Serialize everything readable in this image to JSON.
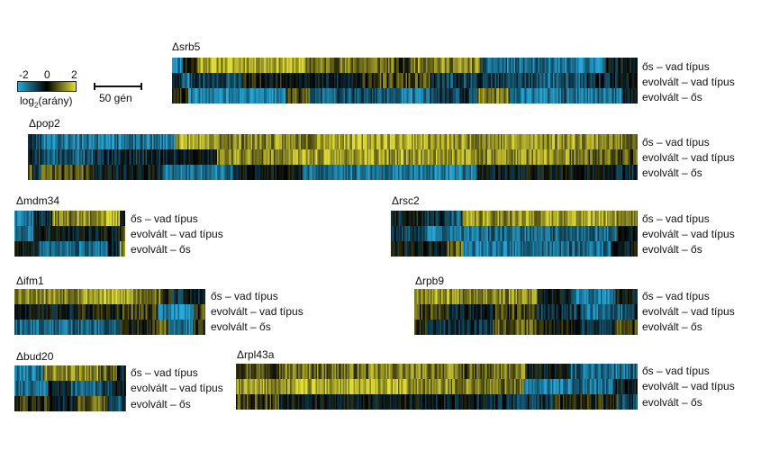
{
  "legend": {
    "tick_min": "-2",
    "tick_mid": "0",
    "tick_max": "2",
    "label_main": "log",
    "label_sub": "2",
    "label_rest": "(arány)",
    "scale_text": "50 gén"
  },
  "colors": {
    "low": "#28a8d8",
    "mid": "#000000",
    "high": "#e2de38"
  },
  "row_labels": [
    "ős – vad típus",
    "evolvált – vad típus",
    "evolvált – ős"
  ],
  "chart_data": {
    "type": "heatmap",
    "value_range": [
      -2,
      2
    ],
    "units": "log2(arány)",
    "panels": [
      {
        "id": "srb5",
        "title": "Δsrb5",
        "rows": [
          {
            "label": "ős – vad típus",
            "segments": [
              [
                6,
                -1.5
              ],
              [
                8,
                0.3
              ],
              [
                60,
                1.6
              ],
              [
                50,
                1.0
              ],
              [
                10,
                0.2
              ],
              [
                40,
                1.2
              ],
              [
                40,
                -1.3
              ],
              [
                30,
                -1.5
              ],
              [
                18,
                -0.2
              ]
            ]
          },
          {
            "label": "evolvált – vad típus",
            "segments": [
              [
                5,
                -0.3
              ],
              [
                5,
                -1.4
              ],
              [
                30,
                -0.8
              ],
              [
                40,
                0.1
              ],
              [
                30,
                -0.4
              ],
              [
                40,
                0.6
              ],
              [
                60,
                -0.8
              ],
              [
                30,
                -1.1
              ],
              [
                20,
                -0.5
              ],
              [
                10,
                -0.2
              ]
            ]
          },
          {
            "label": "evolvált – ős",
            "segments": [
              [
                10,
                0.2
              ],
              [
                60,
                -1.6
              ],
              [
                15,
                0.7
              ],
              [
                55,
                -1.0
              ],
              [
                20,
                -1.4
              ],
              [
                30,
                -0.7
              ],
              [
                20,
                1.0
              ],
              [
                30,
                -1.5
              ],
              [
                40,
                -1.3
              ],
              [
                10,
                -0.3
              ]
            ]
          }
        ]
      },
      {
        "id": "pop2",
        "title": "Δpop2",
        "rows": [
          {
            "label": "ős – vad típus",
            "segments": [
              [
                3,
                -0.3
              ],
              [
                8,
                -0.9
              ],
              [
                45,
                -1.4
              ],
              [
                60,
                -1.4
              ],
              [
                20,
                1.5
              ],
              [
                90,
                1.2
              ],
              [
                90,
                1.6
              ],
              [
                60,
                1.3
              ],
              [
                80,
                1.4
              ],
              [
                25,
                1.1
              ]
            ]
          },
          {
            "label": "evolvált – vad típus",
            "segments": [
              [
                3,
                -0.3
              ],
              [
                8,
                -0.7
              ],
              [
                45,
                -1.1
              ],
              [
                80,
                -0.4
              ],
              [
                30,
                -0.2
              ],
              [
                60,
                1.2
              ],
              [
                150,
                1.4
              ],
              [
                100,
                1.3
              ],
              [
                40,
                0.9
              ],
              [
                20,
                0.7
              ]
            ]
          },
          {
            "label": "evolvált – ős",
            "segments": [
              [
                3,
                0.9
              ],
              [
                8,
                -0.5
              ],
              [
                45,
                0.7
              ],
              [
                60,
                -0.2
              ],
              [
                60,
                -1.4
              ],
              [
                60,
                -0.1
              ],
              [
                90,
                -1.3
              ],
              [
                60,
                -1.5
              ],
              [
                50,
                -0.2
              ],
              [
                70,
                -0.1
              ],
              [
                20,
                -0.4
              ]
            ]
          }
        ]
      },
      {
        "id": "mdm34",
        "title": "Δmdm34",
        "rows": [
          {
            "label": "ős – vad típus",
            "segments": [
              [
                15,
                -1.3
              ],
              [
                15,
                -0.5
              ],
              [
                35,
                1.2
              ],
              [
                20,
                1.5
              ],
              [
                5,
                0.2
              ]
            ]
          },
          {
            "label": "evolvált – vad típus",
            "segments": [
              [
                15,
                -1.2
              ],
              [
                35,
                -0.3
              ],
              [
                35,
                -0.1
              ],
              [
                5,
                0.6
              ]
            ]
          },
          {
            "label": "evolvált – ős",
            "segments": [
              [
                18,
                -0.1
              ],
              [
                12,
                -1.1
              ],
              [
                45,
                -1.3
              ],
              [
                10,
                -0.4
              ],
              [
                5,
                1.3
              ]
            ]
          }
        ]
      },
      {
        "id": "rsc2",
        "title": "Δrsc2",
        "rows": [
          {
            "label": "ős – vad típus",
            "segments": [
              [
                30,
                -0.3
              ],
              [
                20,
                -0.6
              ],
              [
                15,
                -1.0
              ],
              [
                80,
                1.3
              ],
              [
                60,
                1.5
              ],
              [
                20,
                1.2
              ]
            ]
          },
          {
            "label": "evolvált – vad típus",
            "segments": [
              [
                30,
                -0.7
              ],
              [
                25,
                -1.4
              ],
              [
                60,
                -1.3
              ],
              [
                90,
                -1.2
              ],
              [
                20,
                0.2
              ]
            ]
          },
          {
            "label": "evolvált – ős",
            "segments": [
              [
                50,
                -0.1
              ],
              [
                15,
                0.9
              ],
              [
                55,
                -1.4
              ],
              [
                80,
                -1.3
              ],
              [
                25,
                -0.2
              ]
            ]
          }
        ]
      },
      {
        "id": "ifm1",
        "title": "Δifm1",
        "rows": [
          {
            "label": "ős – vad típus",
            "segments": [
              [
                50,
                1.3
              ],
              [
                40,
                1.5
              ],
              [
                20,
                1.1
              ],
              [
                10,
                0.2
              ],
              [
                10,
                -0.6
              ],
              [
                15,
                -0.3
              ]
            ]
          },
          {
            "label": "evolvált – vad típus",
            "segments": [
              [
                50,
                -0.2
              ],
              [
                40,
                0.1
              ],
              [
                30,
                0.6
              ],
              [
                10,
                -1.6
              ],
              [
                20,
                -1.8
              ],
              [
                10,
                0.7
              ]
            ]
          },
          {
            "label": "evolvált – ős",
            "segments": [
              [
                45,
                -1.2
              ],
              [
                40,
                -1.1
              ],
              [
                30,
                0.2
              ],
              [
                10,
                0.9
              ],
              [
                20,
                -1.4
              ],
              [
                10,
                0.4
              ]
            ]
          }
        ]
      },
      {
        "id": "rpb9",
        "title": "Δrpb9",
        "rows": [
          {
            "label": "ős – vad típus",
            "segments": [
              [
                40,
                1.4
              ],
              [
                40,
                1.3
              ],
              [
                30,
                1.2
              ],
              [
                30,
                -0.2
              ],
              [
                40,
                -1.4
              ],
              [
                20,
                -0.2
              ]
            ]
          },
          {
            "label": "evolvált – vad típus",
            "segments": [
              [
                30,
                0.6
              ],
              [
                40,
                -0.3
              ],
              [
                40,
                0.5
              ],
              [
                40,
                -0.6
              ],
              [
                40,
                -1.2
              ],
              [
                10,
                -0.4
              ]
            ]
          },
          {
            "label": "evolvált – ős",
            "segments": [
              [
                10,
                0.3
              ],
              [
                60,
                -0.4
              ],
              [
                40,
                0.9
              ],
              [
                40,
                0.1
              ],
              [
                30,
                -0.4
              ],
              [
                20,
                0.6
              ]
            ]
          }
        ]
      },
      {
        "id": "bud20",
        "title": "Δbud20",
        "rows": [
          {
            "label": "ős – vad típus",
            "segments": [
              [
                30,
                -1.4
              ],
              [
                20,
                1.2
              ],
              [
                40,
                1.3
              ],
              [
                20,
                0.9
              ],
              [
                10,
                -0.4
              ]
            ]
          },
          {
            "label": "evolvált – vad típus",
            "segments": [
              [
                35,
                -1.3
              ],
              [
                25,
                -0.3
              ],
              [
                35,
                -1.1
              ],
              [
                15,
                -0.6
              ],
              [
                10,
                -0.2
              ]
            ]
          },
          {
            "label": "evolvált – ős",
            "segments": [
              [
                40,
                0.4
              ],
              [
                25,
                -0.2
              ],
              [
                35,
                0.8
              ],
              [
                20,
                -0.9
              ]
            ]
          }
        ]
      },
      {
        "id": "rpl43a",
        "title": "Δrpl43a",
        "rows": [
          {
            "label": "ős – vad típus",
            "segments": [
              [
                40,
                0.8
              ],
              [
                80,
                1.0
              ],
              [
                80,
                1.1
              ],
              [
                30,
                0.7
              ],
              [
                30,
                1.0
              ],
              [
                40,
                -0.1
              ],
              [
                40,
                -1.2
              ],
              [
                20,
                -1.3
              ]
            ]
          },
          {
            "label": "evolvált – vad típus",
            "segments": [
              [
                50,
                1.3
              ],
              [
                100,
                1.5
              ],
              [
                60,
                1.2
              ],
              [
                40,
                1.0
              ],
              [
                40,
                -1.5
              ],
              [
                40,
                -1.2
              ],
              [
                20,
                -0.3
              ]
            ]
          },
          {
            "label": "evolvált – ős",
            "segments": [
              [
                40,
                0.6
              ],
              [
                120,
                -0.1
              ],
              [
                80,
                -0.3
              ],
              [
                60,
                -0.6
              ],
              [
                40,
                0.3
              ],
              [
                20,
                0.2
              ],
              [
                20,
                -0.8
              ]
            ]
          }
        ]
      }
    ]
  }
}
